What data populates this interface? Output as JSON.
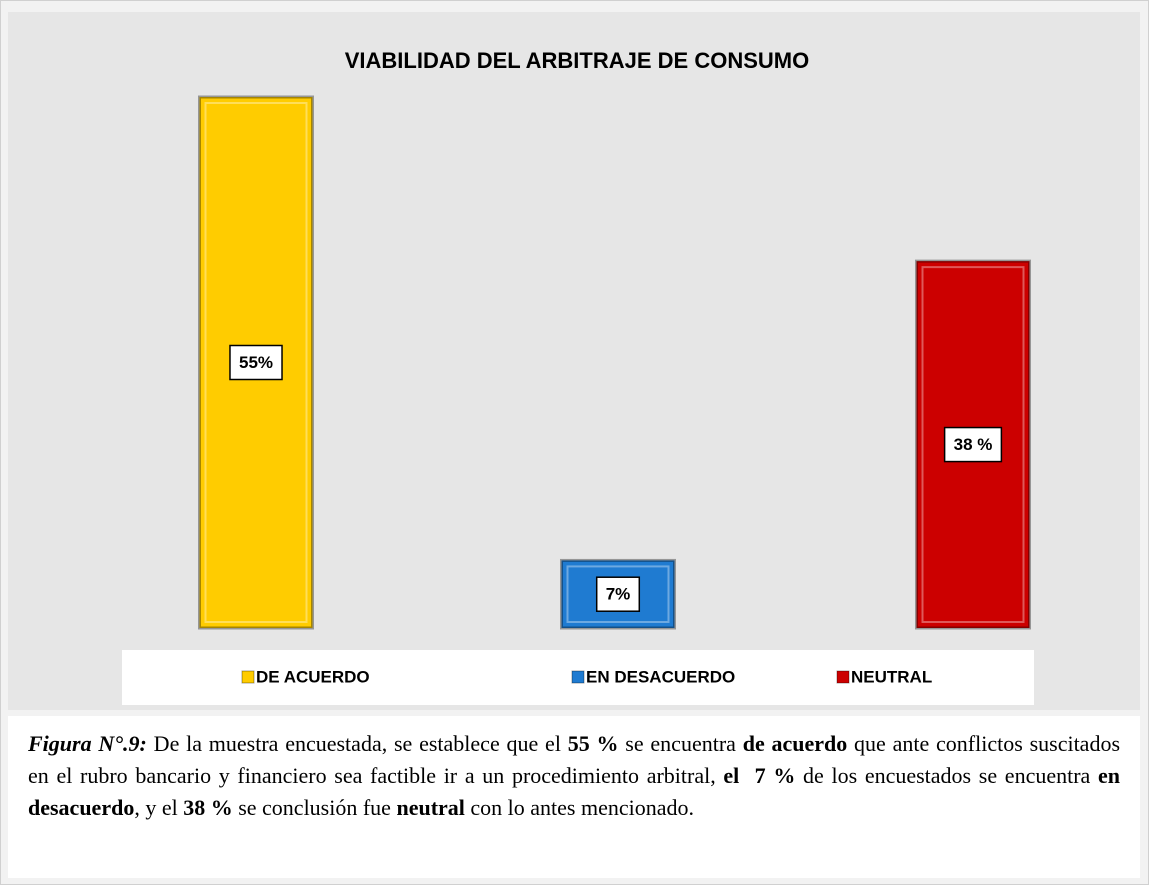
{
  "chart_data": {
    "type": "bar",
    "title": "VIABILIDAD DEL ARBITRAJE DE CONSUMO",
    "categories": [
      "DE ACUERDO",
      "EN DESACUERDO",
      "NEUTRAL"
    ],
    "values": [
      55,
      7,
      38
    ],
    "value_labels": [
      "55%",
      "7%",
      "38 %"
    ],
    "colors": [
      "#ffcc00",
      "#1f7bd1",
      "#cc0000"
    ]
  },
  "caption": [
    "Figura N°.9:",
    " De la muestra encuestada, se establece que el ",
    "55 %",
    " se encuentra ",
    "de acuerdo",
    " que ante conflictos suscitados en el rubro bancario y financiero sea factible ir a un procedimiento arbitral, ",
    "el  7 %",
    " de los encuestados se encuentra ",
    "en desacuerdo",
    ", y el  ",
    "38 %",
    " se conclusión fue ",
    "neutral",
    " con lo antes mencionado."
  ]
}
